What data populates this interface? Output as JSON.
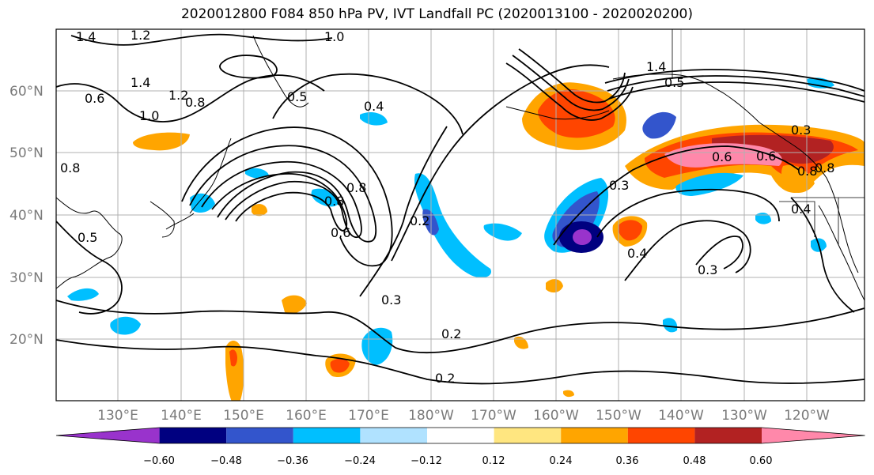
{
  "title": "2020012800 F084 850 hPa PV, IVT Landfall PC (2020013100 - 2020020200)",
  "lat_labels": [
    "60°N",
    "50°N",
    "40°N",
    "30°N",
    "20°N"
  ],
  "lon_labels": [
    "130°E",
    "140°E",
    "150°E",
    "160°E",
    "170°E",
    "180°W",
    "170°W",
    "160°W",
    "150°W",
    "140°W",
    "130°W",
    "120°W"
  ],
  "contour_labels": [
    "1.4",
    "1.2",
    "1.0",
    "1.4",
    "1.2",
    "0.8",
    "0.5",
    "0.4",
    "1.0",
    "0.8",
    "0.6",
    "0.6",
    "1.4",
    "0.5",
    "0.3",
    "0.3",
    "0.6",
    "0.8",
    "0.2",
    "0.3",
    "0.4",
    "0.3",
    "0.2",
    "0.2",
    "0.5",
    "0.8",
    "0.6",
    "0.8",
    "0.4",
    "0.8"
  ],
  "colorbar": {
    "colors": [
      "#9933cc",
      "#000080",
      "#3355cc",
      "#00bfff",
      "#b0e2ff",
      "#ffffff",
      "#ffe680",
      "#ffa500",
      "#ff4500",
      "#b22222",
      "#ff88aa"
    ],
    "tick_labels": [
      "−0.60",
      "−0.48",
      "−0.36",
      "−0.24",
      "−0.12",
      "0.12",
      "0.24",
      "0.36",
      "0.48",
      "0.60"
    ]
  }
}
